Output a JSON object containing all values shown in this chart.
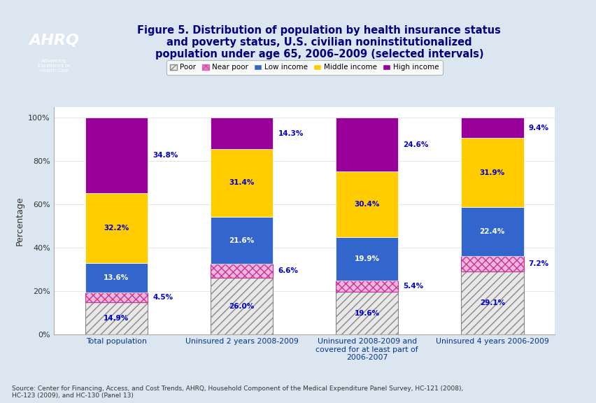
{
  "title": "Figure 5. Distribution of population by health insurance status\nand poverty status, U.S. civilian noninstitutionalized\npopulation under age 65, 2006–2009 (selected intervals)",
  "categories": [
    "Total population",
    "Uninsured 2 years 2008-2009",
    "Uninsured 2008-2009 and\ncovered for at least part of\n2006-2007",
    "Uninsured 4 years 2006-2009"
  ],
  "ylabel": "Percentage",
  "legend_labels": [
    "Poor",
    "Near poor",
    "Low income",
    "Middle income",
    "High income"
  ],
  "values": {
    "Poor": [
      14.9,
      26.0,
      19.6,
      29.1
    ],
    "Near poor": [
      4.5,
      6.6,
      5.4,
      7.2
    ],
    "Low income": [
      13.6,
      21.6,
      19.9,
      22.4
    ],
    "Middle income": [
      32.2,
      31.4,
      30.4,
      31.9
    ],
    "High income": [
      34.8,
      14.3,
      24.6,
      9.4
    ]
  },
  "label_colors": {
    "Poor": "#0000cc",
    "Near poor": "#0000cc",
    "Low income": "#ffffff",
    "Middle income": "#0000cc",
    "High income": "#ffffff"
  },
  "label_outside": {
    "Poor": false,
    "Near poor": true,
    "Low income": false,
    "Middle income": false,
    "High income": true
  },
  "source_text": "Source: Center for Financing, Access, and Cost Trends, AHRQ, Household Component of the Medical Expenditure Panel Survey, HC-121 (2008),\nHC-123 (2009), and HC-130 (Panel 13)",
  "bar_width": 0.5,
  "ylim": [
    0,
    105
  ],
  "yticks": [
    0,
    20,
    40,
    60,
    80,
    100
  ],
  "yticklabels": [
    "0%",
    "20%",
    "40%",
    "60%",
    "80%",
    "100%"
  ]
}
